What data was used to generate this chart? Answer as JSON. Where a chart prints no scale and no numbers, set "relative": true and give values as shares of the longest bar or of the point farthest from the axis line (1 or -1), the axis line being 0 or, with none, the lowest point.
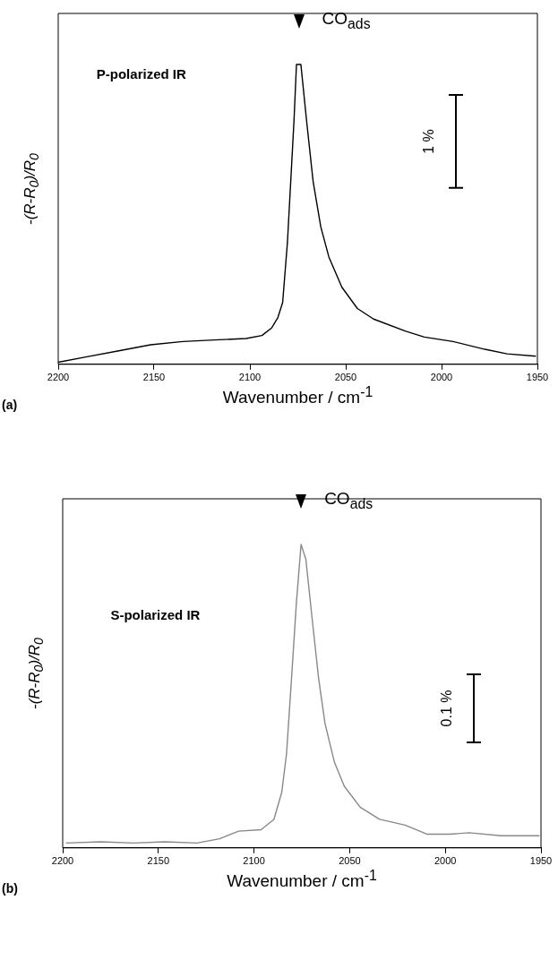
{
  "chart_data": [
    {
      "type": "line",
      "xlabel": "Wavenumber / cm$^{-1}$",
      "ylabel": "-(R-R$_{0}$)/R$_{0}$",
      "relative": true,
      "xlim": [
        2200,
        1950
      ],
      "xticks": [
        2200,
        2150,
        2100,
        2050,
        2000,
        1950
      ],
      "series": [
        {
          "color": "#000000",
          "x": [
            2200,
            2185,
            2168.4,
            2151.8,
            2135,
            2118.6,
            2102,
            2093.7,
            2088.7,
            2085.4,
            2082.9,
            2080.4,
            2078.7,
            2077,
            2075.7,
            2073.4,
            2070.4,
            2067,
            2063,
            2058.8,
            2052,
            2043.9,
            2035.5,
            2019,
            2009,
            1994,
            1977.4,
            1965.8,
            1950.8
          ],
          "values": [
            0.007,
            0.025,
            0.045,
            0.065,
            0.076,
            0.081,
            0.086,
            0.096,
            0.121,
            0.156,
            0.206,
            0.408,
            0.609,
            0.811,
            1,
            1,
            0.811,
            0.609,
            0.458,
            0.358,
            0.257,
            0.186,
            0.151,
            0.111,
            0.091,
            0.076,
            0.05,
            0.035,
            0.027
          ]
        }
      ],
      "annotations": [
        "P-polarized IR",
        {
          "text": "CO$_{ads}$",
          "x": 2074.5,
          "y": 1
        },
        "1 %",
        "(a)"
      ]
    },
    {
      "type": "line",
      "xlabel": "Wavenumber / cm$^{-1}$",
      "ylabel": "-(R-R$_{0}$)/R$_{0}$",
      "relative": true,
      "xlim": [
        2200,
        1950
      ],
      "xticks": [
        2200,
        2150,
        2100,
        2050,
        2000,
        1950
      ],
      "series": [
        {
          "color": "#888888",
          "x": [
            2198.3,
            2180,
            2163,
            2146.5,
            2129.8,
            2118,
            2108,
            2096.3,
            2089.6,
            2085.5,
            2083,
            2080.4,
            2077.9,
            2075.4,
            2072.9,
            2069.6,
            2066.2,
            2062.9,
            2057.9,
            2052.8,
            2044.5,
            2034.4,
            2021,
            2009.4,
            1997.7,
            1987.6,
            1970.9,
            1950.8
          ],
          "values": [
            0.016,
            0.02,
            0.016,
            0.02,
            0.016,
            0.03,
            0.055,
            0.06,
            0.094,
            0.183,
            0.31,
            0.557,
            0.803,
            1,
            0.951,
            0.754,
            0.557,
            0.41,
            0.281,
            0.203,
            0.134,
            0.094,
            0.075,
            0.045,
            0.045,
            0.05,
            0.04,
            0.04
          ]
        }
      ],
      "annotations": [
        "S-polarized IR",
        {
          "text": "CO$_{ads}$",
          "x": 2075.4,
          "y": 1
        },
        "0.1 %",
        "(b)"
      ]
    }
  ]
}
